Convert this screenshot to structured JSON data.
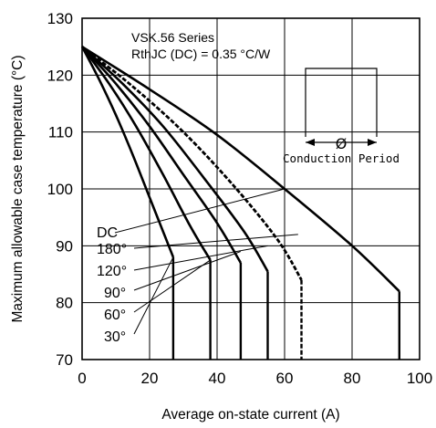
{
  "chart_data": {
    "type": "line",
    "title": "",
    "xlabel": "Average on-state current (A)",
    "ylabel": "Maximum allowable case temperature (°C)",
    "xlim": [
      0,
      100
    ],
    "ylim": [
      70,
      130
    ],
    "x_ticks": [
      "0",
      "20",
      "40",
      "60",
      "80",
      "100"
    ],
    "y_ticks": [
      "70",
      "80",
      "90",
      "100",
      "110",
      "120",
      "130"
    ],
    "grid": true,
    "annotations": {
      "series_name": "VSK.56 Series",
      "rth": "RthJC (DC) = 0.35 °C/W",
      "waveform_label": "Conduction Period",
      "phi": "Ø"
    },
    "series": [
      {
        "name": "30°",
        "x": [
          0,
          5,
          10,
          15,
          20,
          24,
          27
        ],
        "y": [
          125,
          119.3,
          113,
          106,
          98.5,
          92.5,
          88
        ],
        "dashed": false
      },
      {
        "name": "60°",
        "x": [
          0,
          8,
          16,
          24,
          32,
          38
        ],
        "y": [
          125,
          118.5,
          111,
          102.5,
          93.5,
          87.5
        ],
        "dashed": false
      },
      {
        "name": "90°",
        "x": [
          0,
          10,
          20,
          30,
          40,
          47
        ],
        "y": [
          125,
          118.5,
          111,
          102.5,
          94,
          87
        ],
        "dashed": false
      },
      {
        "name": "120°",
        "x": [
          0,
          12,
          24,
          36,
          48,
          55
        ],
        "y": [
          125,
          118.5,
          111,
          102,
          92.5,
          85.5
        ],
        "dashed": false
      },
      {
        "name": "180°",
        "x": [
          0,
          15,
          30,
          45,
          58,
          65
        ],
        "y": [
          125,
          118,
          110,
          100.5,
          91,
          84
        ],
        "dashed": true
      },
      {
        "name": "DC",
        "x": [
          0,
          20,
          40,
          60,
          80,
          94
        ],
        "y": [
          125,
          117.5,
          109.5,
          100,
          90,
          82
        ],
        "dashed": false
      }
    ],
    "drop_lines": [
      {
        "name": "30°",
        "x": 27,
        "y_top": 88
      },
      {
        "name": "60°",
        "x": 38,
        "y_top": 87.5
      },
      {
        "name": "90°",
        "x": 47,
        "y_top": 87
      },
      {
        "name": "120°",
        "x": 55,
        "y_top": 85.5
      },
      {
        "name": "180°",
        "x": 65,
        "y_top": 84
      },
      {
        "name": "DC",
        "x": 94,
        "y_top": 82
      }
    ],
    "legend_placement": "left, inline labels with leader lines",
    "legend_labels": [
      "DC",
      "180°",
      "120°",
      "90°",
      "60°",
      "30°"
    ]
  }
}
